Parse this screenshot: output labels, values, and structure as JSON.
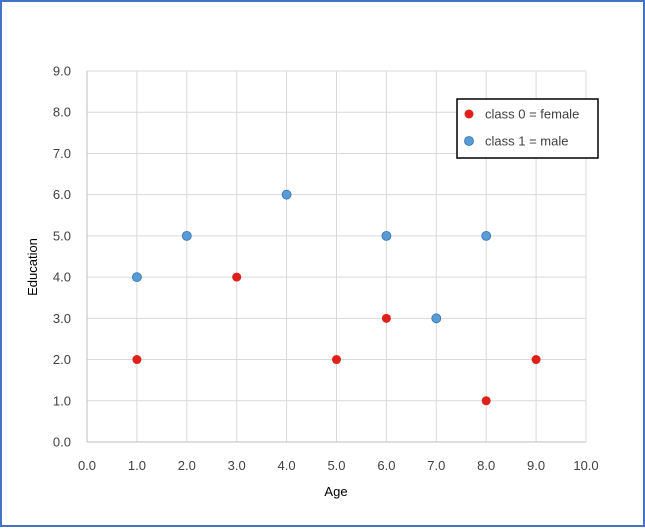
{
  "chart_data": {
    "type": "scatter",
    "title": "",
    "xlabel": "Age",
    "ylabel": "Education",
    "xlim": [
      0,
      10
    ],
    "ylim": [
      0,
      9
    ],
    "xticks": [
      "0.0",
      "1.0",
      "2.0",
      "3.0",
      "4.0",
      "5.0",
      "6.0",
      "7.0",
      "8.0",
      "9.0",
      "10.0"
    ],
    "yticks": [
      "0.0",
      "1.0",
      "2.0",
      "3.0",
      "4.0",
      "5.0",
      "6.0",
      "7.0",
      "8.0",
      "9.0"
    ],
    "grid": true,
    "legend_position": "top-right",
    "series": [
      {
        "name": "class 0 = female",
        "color": "#e0201b",
        "points": [
          {
            "x": 1,
            "y": 2
          },
          {
            "x": 3,
            "y": 4
          },
          {
            "x": 5,
            "y": 2
          },
          {
            "x": 6,
            "y": 3
          },
          {
            "x": 8,
            "y": 1
          },
          {
            "x": 9,
            "y": 2
          }
        ]
      },
      {
        "name": "class 1 = male",
        "color": "#5b9bd5",
        "points": [
          {
            "x": 1,
            "y": 4
          },
          {
            "x": 2,
            "y": 5
          },
          {
            "x": 4,
            "y": 6
          },
          {
            "x": 6,
            "y": 5
          },
          {
            "x": 7,
            "y": 3
          },
          {
            "x": 8,
            "y": 5
          }
        ]
      }
    ]
  }
}
